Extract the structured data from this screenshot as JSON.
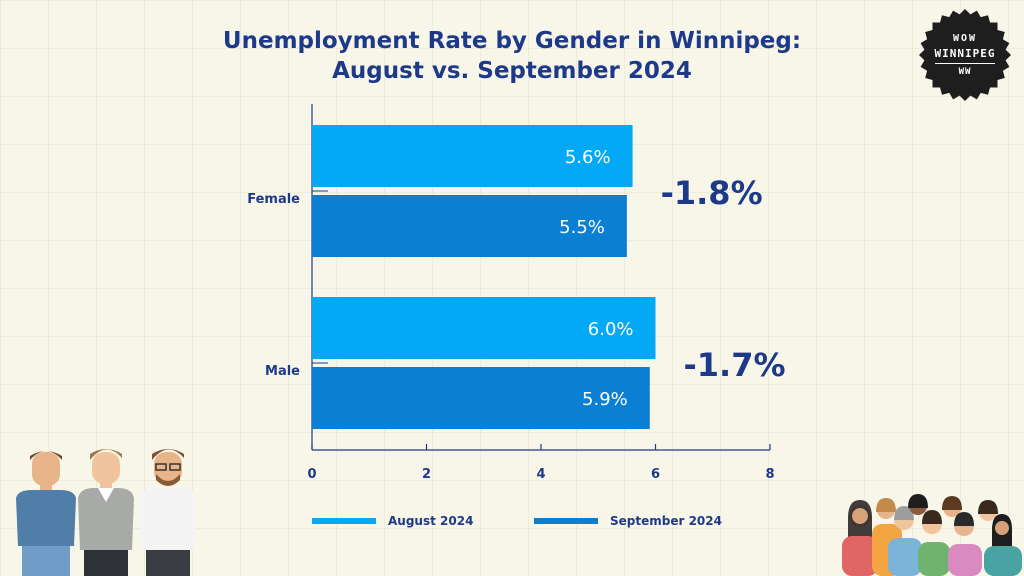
{
  "chart_data": {
    "type": "bar",
    "orientation": "horizontal",
    "title": "Unemployment Rate by Gender in Winnipeg:",
    "subtitle": "August vs. September 2024",
    "categories": [
      "Female",
      "Male"
    ],
    "series": [
      {
        "name": "August 2024",
        "values": [
          5.6,
          6.0
        ],
        "labels": [
          "5.6%",
          "6.0%"
        ],
        "color": "#03a9f4"
      },
      {
        "name": "September 2024",
        "values": [
          5.5,
          5.9
        ],
        "labels": [
          "5.5%",
          "5.9%"
        ],
        "color": "#0b7fd4"
      }
    ],
    "annotations": [
      "-1.8%",
      "-1.7%"
    ],
    "xlim": [
      0,
      8
    ],
    "xticks": [
      "0",
      "2",
      "4",
      "6",
      "8"
    ],
    "xlabel": "",
    "ylabel": "",
    "legend_position": "bottom"
  },
  "badge": {
    "line1": "WOW",
    "line2": "WINNIPEG",
    "line3": "WW"
  },
  "colors": {
    "title": "#1d3a8a",
    "axis": "#1d3a8a",
    "badge_bg": "#1e1e1e"
  }
}
